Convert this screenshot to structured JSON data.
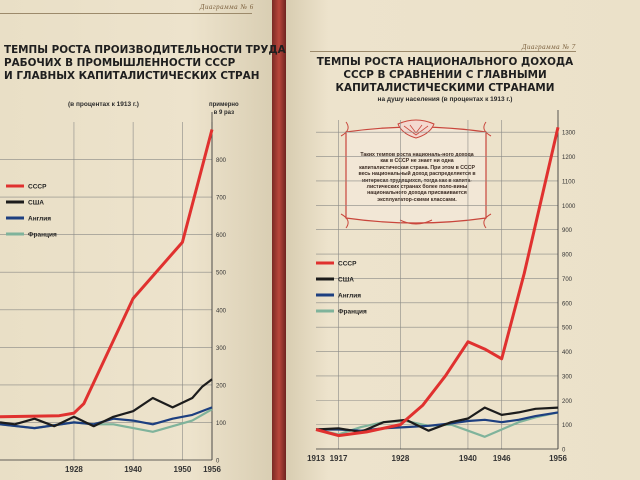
{
  "left_page": {
    "diagram_label": "Диаграмма № 6",
    "title_lines": [
      "ТЕМПЫ РОСТА ПРОИЗВОДИТЕЛЬНОСТИ ТРУДА",
      "РАБОЧИХ В ПРОМЫШЛЕННОСТИ СССР",
      "И ГЛАВНЫХ КАПИТАЛИСТИЧЕСКИХ СТРАН"
    ],
    "subtitle": "(в процентах к 1913 г.)",
    "note_lines": [
      "примерно",
      "в 9 раз"
    ],
    "legend": [
      "СССР",
      "США",
      "Англия",
      "Франция"
    ]
  },
  "right_page": {
    "diagram_label": "Диаграмма № 7",
    "title_lines": [
      "ТЕМПЫ РОСТА НАЦИОНАЛЬНОГО ДОХОДА",
      "СССР В СРАВНЕНИИ С ГЛАВНЫМИ",
      "КАПИТАЛИСТИЧЕСКИМИ СТРАНАМИ"
    ],
    "subtitle": "на душу населения (в процентах к 1913 г.)",
    "panel_text": "Таких темпов роста националь-ного дохода как в СССР не знает ни одна капиталистическая страна. При этом в СССР весь национальный доход распределяется в интересах трудящихся, тогда как в капита-листических странах более поло-вины национального дохода присваивается эксплуататор-скими классами.",
    "legend": [
      "СССР",
      "США",
      "Англия",
      "Франция"
    ]
  },
  "colors": {
    "ussr": "#e0312f",
    "usa": "#1c1c1c",
    "england": "#1d3f80",
    "france": "#7fb39b",
    "grid": "#8a8a86",
    "paper": "#ede3cc"
  },
  "chart_data": [
    {
      "type": "line",
      "title": "ТЕМПЫ РОСТА ПРОИЗВОДИТЕЛЬНОСТИ ТРУДА РАБОЧИХ В ПРОМЫШЛЕННОСТИ СССР И ГЛАВНЫХ КАПИТАЛИСТИЧЕСКИХ СТРАН",
      "subtitle": "(в процентах к 1913 г.)",
      "x_tick_labels": [
        "1928",
        "1940",
        "1950",
        "1956"
      ],
      "y_tick_labels": [
        "0",
        "100",
        "200",
        "300",
        "400",
        "500",
        "600",
        "700",
        "800"
      ],
      "ylim": [
        0,
        900
      ],
      "grid": true,
      "legend_position": "left",
      "annotation": "примерно в 9 раз",
      "series": [
        {
          "name": "СССР",
          "x": [
            1913,
            1925,
            1928,
            1930,
            1940,
            1950,
            1956
          ],
          "y": [
            115,
            118,
            125,
            150,
            430,
            580,
            880
          ]
        },
        {
          "name": "США",
          "x": [
            1913,
            1916,
            1920,
            1924,
            1928,
            1932,
            1936,
            1940,
            1944,
            1948,
            1952,
            1954,
            1956
          ],
          "y": [
            100,
            95,
            110,
            90,
            115,
            90,
            115,
            130,
            165,
            140,
            165,
            195,
            215
          ]
        },
        {
          "name": "Англия",
          "x": [
            1913,
            1920,
            1928,
            1932,
            1936,
            1940,
            1944,
            1948,
            1952,
            1956
          ],
          "y": [
            95,
            85,
            100,
            95,
            110,
            105,
            95,
            110,
            120,
            140
          ]
        },
        {
          "name": "Франция",
          "x": [
            1913,
            1920,
            1928,
            1932,
            1936,
            1940,
            1944,
            1948,
            1952,
            1956
          ],
          "y": [
            95,
            85,
            100,
            95,
            95,
            85,
            75,
            90,
            105,
            135
          ]
        }
      ]
    },
    {
      "type": "line",
      "title": "ТЕМПЫ РОСТА НАЦИОНАЛЬНОГО ДОХОДА СССР В СРАВНЕНИИ С ГЛАВНЫМИ КАПИТАЛИСТИЧЕСКИМИ СТРАНАМИ",
      "subtitle": "на душу населения (в процентах к 1913 г.)",
      "x_tick_labels": [
        "1913",
        "1917",
        "1928",
        "1940",
        "1946",
        "1956"
      ],
      "y_tick_labels": [
        "0",
        "100",
        "200",
        "300",
        "400",
        "500",
        "600",
        "700",
        "800",
        "900",
        "1000",
        "1100",
        "1200",
        "1300"
      ],
      "ylim": [
        0,
        1350
      ],
      "grid": true,
      "legend_position": "left",
      "series": [
        {
          "name": "СССР",
          "x": [
            1913,
            1917,
            1922,
            1928,
            1932,
            1936,
            1940,
            1943,
            1946,
            1950,
            1956
          ],
          "y": [
            80,
            55,
            70,
            100,
            180,
            300,
            440,
            410,
            370,
            720,
            1320
          ]
        },
        {
          "name": "США",
          "x": [
            1913,
            1917,
            1921,
            1925,
            1929,
            1933,
            1937,
            1940,
            1943,
            1946,
            1949,
            1952,
            1956
          ],
          "y": [
            80,
            85,
            70,
            110,
            120,
            75,
            110,
            125,
            170,
            140,
            150,
            165,
            170
          ]
        },
        {
          "name": "Англия",
          "x": [
            1913,
            1917,
            1921,
            1925,
            1929,
            1933,
            1937,
            1940,
            1943,
            1946,
            1949,
            1952,
            1956
          ],
          "y": [
            80,
            80,
            75,
            85,
            90,
            95,
            105,
            115,
            120,
            110,
            120,
            135,
            150
          ]
        },
        {
          "name": "Франция",
          "x": [
            1913,
            1917,
            1921,
            1925,
            1929,
            1933,
            1937,
            1940,
            1943,
            1946,
            1949,
            1952,
            1956
          ],
          "y": [
            80,
            60,
            90,
            110,
            115,
            95,
            100,
            75,
            50,
            80,
            110,
            130,
            150
          ]
        }
      ]
    }
  ]
}
